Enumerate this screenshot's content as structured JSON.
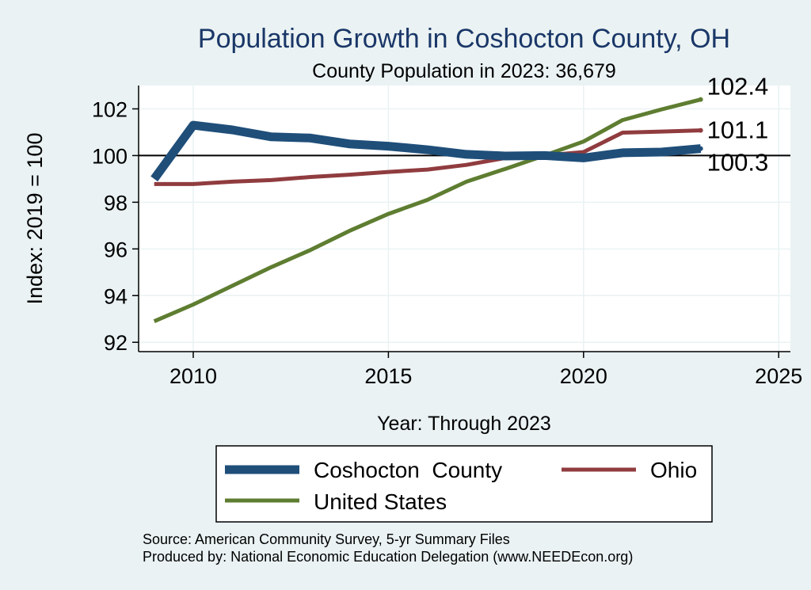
{
  "chart_data": {
    "type": "line",
    "title": "Population Growth in Coshocton County, OH",
    "subtitle": "County Population in 2023: 36,679",
    "xlabel": "Year: Through 2023",
    "ylabel": "Index: 2019 = 100",
    "xlim": [
      2008.6,
      2025.3
    ],
    "ylim": [
      91.6,
      103.0
    ],
    "xticks": [
      2010,
      2015,
      2020,
      2025
    ],
    "yticks": [
      92,
      94,
      96,
      98,
      100,
      102
    ],
    "xtick_labels": [
      "2010",
      "2015",
      "2020",
      "2025"
    ],
    "ytick_labels": [
      "92",
      "94",
      "96",
      "98",
      "100",
      "102"
    ],
    "reference_line": 100,
    "grid": true,
    "x": [
      2009,
      2010,
      2011,
      2012,
      2013,
      2014,
      2015,
      2016,
      2017,
      2018,
      2019,
      2020,
      2021,
      2022,
      2023
    ],
    "series": [
      {
        "name": "Coshocton  County",
        "color": "#1f4e79",
        "values": [
          99.0,
          101.3,
          101.1,
          100.8,
          100.75,
          100.5,
          100.4,
          100.25,
          100.05,
          99.98,
          100.0,
          99.9,
          100.12,
          100.15,
          100.3
        ],
        "end_label": "100.3"
      },
      {
        "name": "Ohio",
        "color": "#903c3f",
        "values": [
          98.78,
          98.78,
          98.88,
          98.95,
          99.08,
          99.18,
          99.3,
          99.4,
          99.6,
          99.9,
          100.0,
          100.15,
          100.98,
          101.03,
          101.08
        ],
        "end_label": "101.1"
      },
      {
        "name": "United States",
        "color": "#5e7d31",
        "values": [
          92.9,
          93.62,
          94.42,
          95.22,
          95.95,
          96.77,
          97.5,
          98.1,
          98.88,
          99.43,
          100.0,
          100.6,
          101.52,
          101.98,
          102.4
        ],
        "end_label": "102.4"
      }
    ]
  },
  "source_line": "Source: American Community Survey, 5-yr Summary Files",
  "produced_line": "Produced by: National Economic Education Delegation (www.NEEDEcon.org)"
}
